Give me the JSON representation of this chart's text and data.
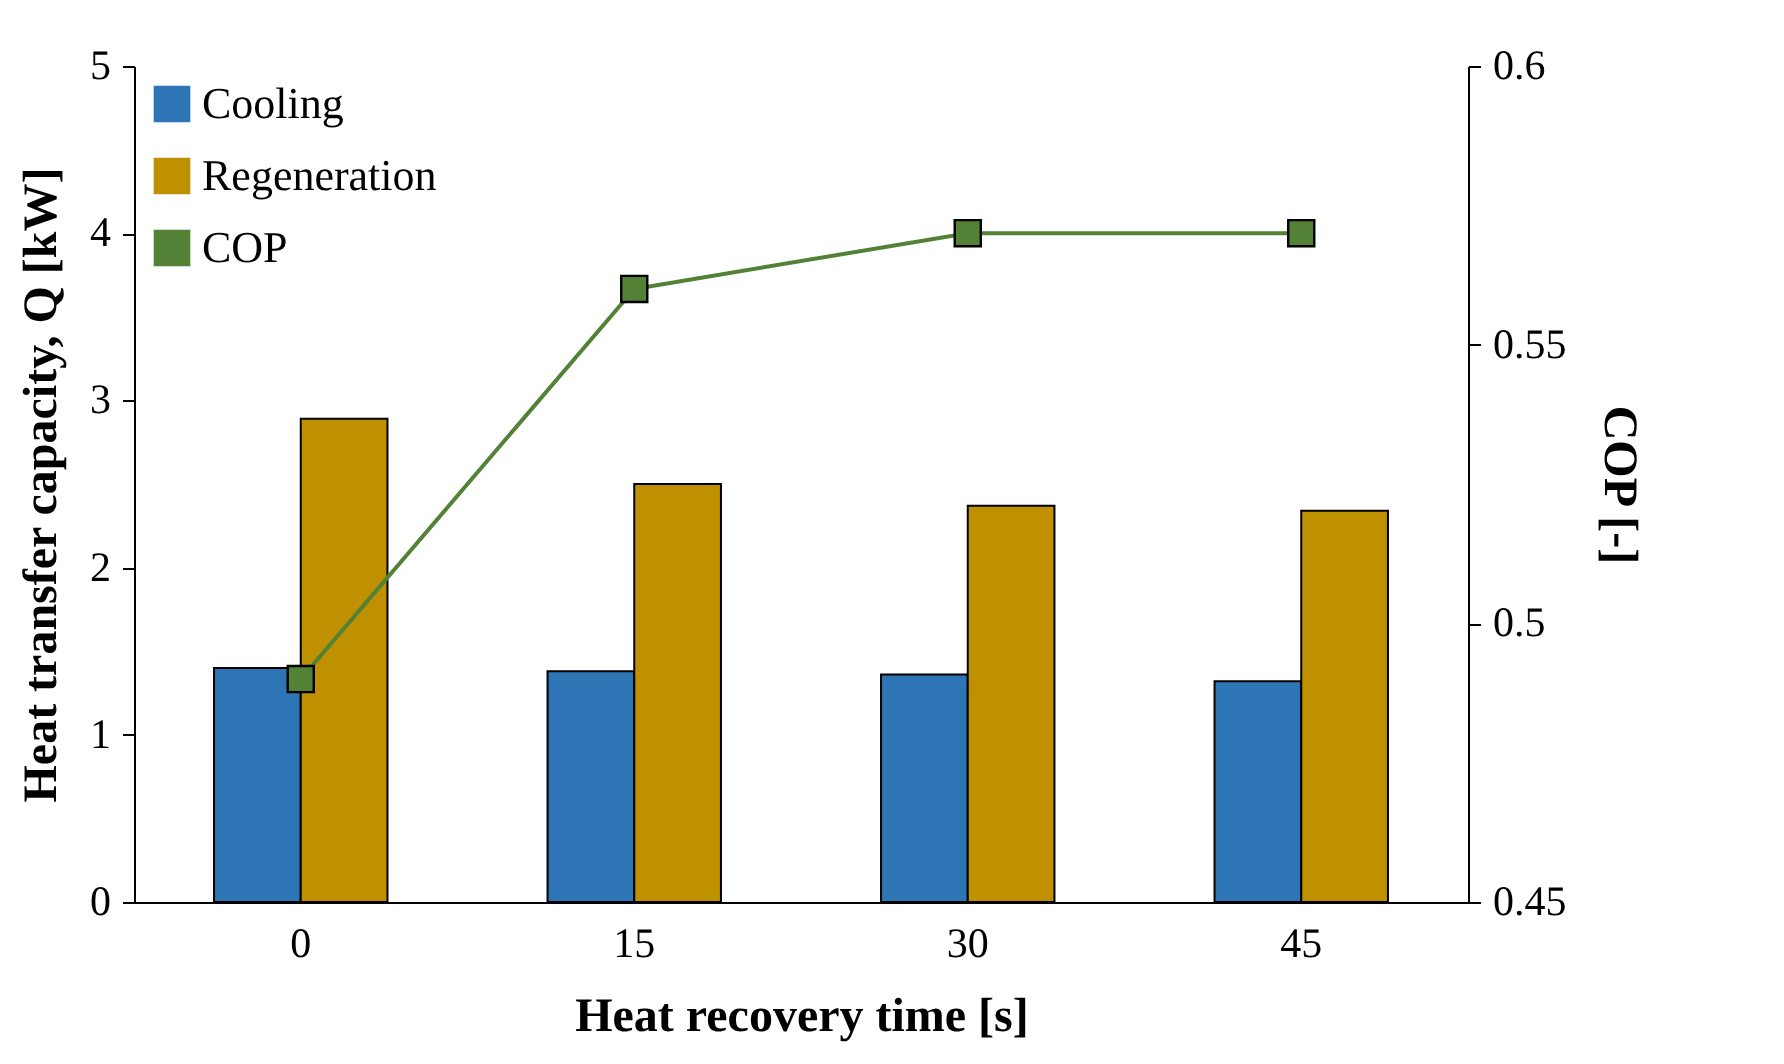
{
  "chart_data": {
    "type": "bar",
    "xlabel": "Heat recovery time [s]",
    "ylabel": "Heat transfer capacity, Q [kW]",
    "y2label": "COP [-]",
    "categories": [
      "0",
      "15",
      "30",
      "45"
    ],
    "series": [
      {
        "name": "Cooling",
        "color": "#2e75b6",
        "values": [
          1.4,
          1.38,
          1.36,
          1.32
        ]
      },
      {
        "name": "Regeneration",
        "color": "#bf9000",
        "values": [
          2.89,
          2.5,
          2.37,
          2.34
        ]
      },
      {
        "name": "COP",
        "type": "line",
        "axis": "y2",
        "color": "#538135",
        "values": [
          0.49,
          0.56,
          0.57,
          0.57
        ]
      }
    ],
    "ylim": [
      0,
      5
    ],
    "yticks": [
      0,
      1,
      2,
      3,
      4,
      5
    ],
    "y2lim": [
      0.45,
      0.6
    ],
    "y2ticks": [
      0.45,
      0.5,
      0.55,
      0.6
    ],
    "grid": false,
    "legend": "top left",
    "marker": "square",
    "line_style": "solid"
  }
}
